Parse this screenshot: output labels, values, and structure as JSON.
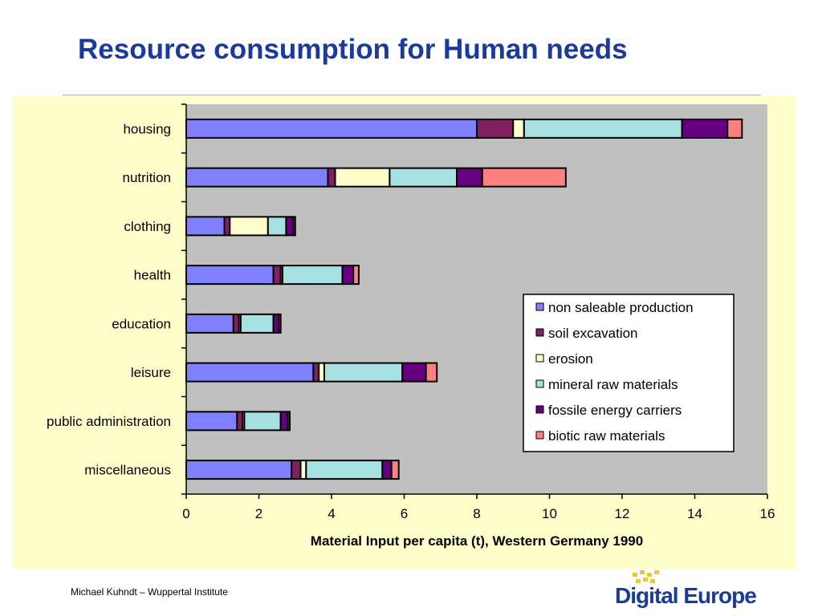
{
  "slide": {
    "title": "Resource consumption for Human needs",
    "footer": "Michael Kuhndt – Wuppertal Institute",
    "logo_text": "Digital Europe"
  },
  "colors": {
    "title": "#1a3a9c",
    "chart_background": "#ffffcc",
    "plot_background": "#c0c0c0",
    "logo": "#1a3a9c"
  },
  "chart_data": {
    "type": "bar",
    "orientation": "horizontal",
    "stacked": true,
    "title": "",
    "categories": [
      "housing",
      "nutrition",
      "clothing",
      "health",
      "education",
      "leisure",
      "public administration",
      "miscellaneous"
    ],
    "xlabel": "Material Input per capita (t), Western Germany 1990",
    "ylabel": "",
    "xlim": [
      0,
      16
    ],
    "xticks": [
      0,
      2,
      4,
      6,
      8,
      10,
      12,
      14,
      16
    ],
    "grid": false,
    "legend_position": "right",
    "series": [
      {
        "name": "non saleable production",
        "color": "#8080ff",
        "values": [
          8.0,
          3.9,
          1.05,
          2.4,
          1.3,
          3.5,
          1.4,
          2.9
        ]
      },
      {
        "name": "soil excavation",
        "color": "#802060",
        "values": [
          1.0,
          0.2,
          0.15,
          0.2,
          0.15,
          0.15,
          0.15,
          0.25
        ]
      },
      {
        "name": "erosion",
        "color": "#ffffcc",
        "values": [
          0.3,
          1.5,
          1.05,
          0.05,
          0.05,
          0.15,
          0.05,
          0.15
        ]
      },
      {
        "name": "mineral raw materials",
        "color": "#a6e0e0",
        "values": [
          4.35,
          1.85,
          0.5,
          1.65,
          0.9,
          2.15,
          1.0,
          2.1
        ]
      },
      {
        "name": "fossile energy carriers",
        "color": "#660080",
        "values": [
          1.25,
          0.7,
          0.2,
          0.3,
          0.15,
          0.65,
          0.2,
          0.25
        ]
      },
      {
        "name": "biotic raw materials",
        "color": "#ff8080",
        "values": [
          0.4,
          2.3,
          0.05,
          0.15,
          0.05,
          0.3,
          0.05,
          0.2
        ]
      }
    ]
  }
}
